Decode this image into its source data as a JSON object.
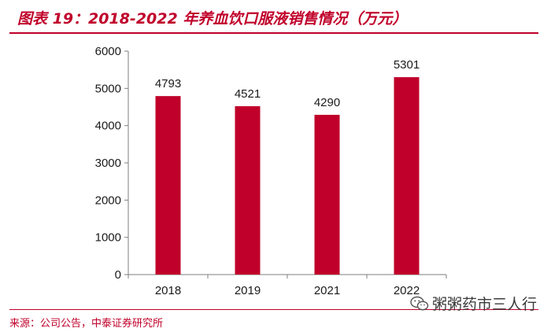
{
  "header": {
    "title": "图表 19：2018-2022 年养血饮口服液销售情况（万元）"
  },
  "footer": {
    "source": "来源：公司公告，中泰证券研究所",
    "watermark": "粥粥药市三人行"
  },
  "colors": {
    "accent": "#c0002a",
    "bar": "#c0002a",
    "axis": "#7f7f7f",
    "text": "#1a1a1a"
  },
  "chart_data": {
    "type": "bar",
    "title": "2018-2022 年养血饮口服液销售情况（万元）",
    "categories": [
      "2018",
      "2019",
      "2021",
      "2022"
    ],
    "values": [
      4793,
      4521,
      4290,
      5301
    ],
    "data_labels": [
      "4793",
      "4521",
      "4290",
      "5301"
    ],
    "yticks": [
      0,
      1000,
      2000,
      3000,
      4000,
      5000,
      6000
    ],
    "ylim": [
      0,
      6000
    ],
    "xlabel": "",
    "ylabel": "",
    "grid": false,
    "legend": false
  }
}
